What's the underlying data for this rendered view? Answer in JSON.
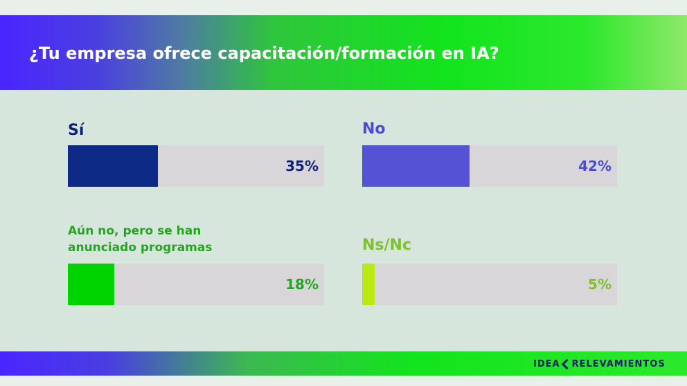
{
  "header": {
    "title": "¿Tu empresa ofrece capacitación/formación en IA?"
  },
  "brand": {
    "part1": "IDEA",
    "part2": "RELEVAMIENTOS"
  },
  "colors": {
    "track": "#d8d6d9",
    "si": "#0d2a86",
    "no": "#5552d6",
    "aun_no": "#00d400",
    "ns_nc": "#b9e813",
    "si_text": "#0d2278",
    "no_text": "#4a4cd2",
    "aun_no_text": "#23a61e",
    "ns_nc_text": "#7ec22a"
  },
  "chart_data": {
    "type": "bar",
    "title": "¿Tu empresa ofrece capacitación/formación en IA?",
    "categories": [
      "Sí",
      "No",
      "Aún no, pero se han anunciado programas",
      "Ns/Nc"
    ],
    "values": [
      35,
      42,
      18,
      5
    ],
    "value_labels": [
      "35%",
      "42%",
      "18%",
      "5%"
    ],
    "unit": "%",
    "grid": false,
    "legend": "none",
    "label_lines": {
      "aun_no": [
        "Aún no, pero se han",
        "anunciado programas"
      ]
    }
  }
}
